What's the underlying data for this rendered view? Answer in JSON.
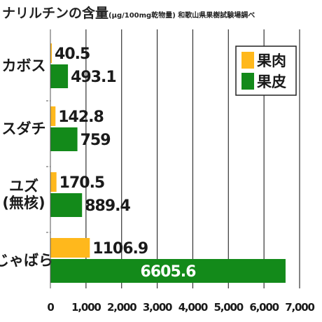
{
  "title": "ナリルチンの含量",
  "subtitle": "(μg/100mg乾物量) 和歌山県果樹試験場調べ",
  "chart_data": {
    "type": "bar",
    "orientation": "horizontal",
    "categories": [
      "カボス",
      "スダチ",
      "ユズ\n(無核)",
      "じゃばら"
    ],
    "series": [
      {
        "name": "果肉",
        "color": "#FFB81C",
        "values": [
          40.5,
          142.8,
          170.5,
          1106.9
        ],
        "labels": [
          "40.5",
          "142.8",
          "170.5",
          "1106.9"
        ]
      },
      {
        "name": "果皮",
        "color": "#138A1A",
        "values": [
          493.1,
          759,
          889.4,
          6605.6
        ],
        "labels": [
          "493.1",
          "759",
          "889.4",
          "6605.6"
        ]
      }
    ],
    "xlim": [
      0,
      7000
    ],
    "xticks": [
      0,
      1000,
      2000,
      3000,
      4000,
      5000,
      6000,
      7000
    ],
    "xtick_labels": [
      "0",
      "1,000",
      "2,000",
      "3,000",
      "4,000",
      "5,000",
      "6,000",
      "7,000"
    ],
    "grid": true,
    "legend_position": "top-right"
  }
}
